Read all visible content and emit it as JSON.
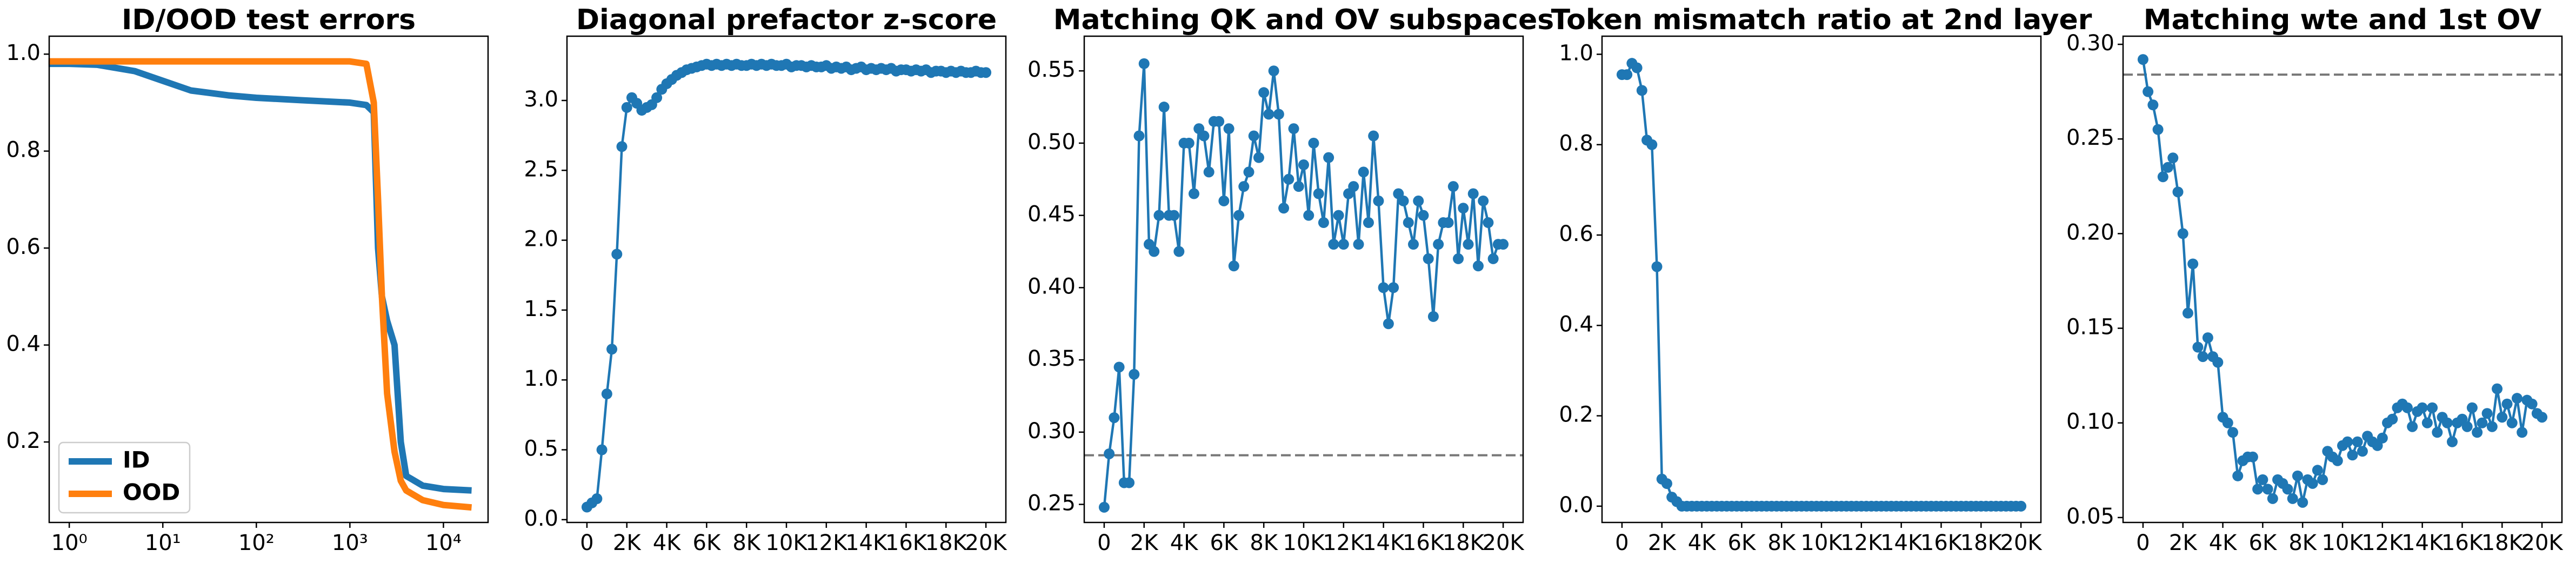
{
  "chart_data": [
    {
      "type": "line",
      "title": "ID/OOD test errors",
      "xscale": "log",
      "x": [
        0.6,
        1,
        2,
        5,
        10,
        20,
        50,
        100,
        300,
        1000,
        1500,
        1800,
        2000,
        2200,
        2500,
        3000,
        3500,
        4000,
        6000,
        10000,
        20000
      ],
      "series": [
        {
          "name": "ID",
          "color": "#1f77b4",
          "values": [
            0.98,
            0.98,
            0.978,
            0.965,
            0.945,
            0.925,
            0.915,
            0.91,
            0.905,
            0.9,
            0.895,
            0.88,
            0.6,
            0.5,
            0.45,
            0.4,
            0.2,
            0.13,
            0.11,
            0.103,
            0.1
          ]
        },
        {
          "name": "OOD",
          "color": "#ff7f0e",
          "values": [
            0.985,
            0.985,
            0.985,
            0.985,
            0.985,
            0.985,
            0.985,
            0.985,
            0.985,
            0.985,
            0.98,
            0.9,
            0.7,
            0.5,
            0.3,
            0.18,
            0.12,
            0.1,
            0.08,
            0.07,
            0.065
          ]
        }
      ],
      "xlim": [
        0.61,
        30000
      ],
      "xticks": [
        {
          "value": 1,
          "label": "10⁰"
        },
        {
          "value": 10,
          "label": "10¹"
        },
        {
          "value": 100,
          "label": "10²"
        },
        {
          "value": 1000,
          "label": "10³"
        },
        {
          "value": 10000,
          "label": "10⁴"
        }
      ],
      "ylim": [
        0.034,
        1.037
      ],
      "yticks": [
        0.2,
        0.4,
        0.6,
        0.8,
        {
          "value": 1,
          "label": "1.0"
        }
      ],
      "legend": "lower left"
    },
    {
      "type": "line",
      "title": "Diagonal prefactor z-score",
      "markers": true,
      "color": "#1f77b4",
      "x": [
        0,
        250,
        500,
        750,
        1000,
        1250,
        1500,
        1750,
        2000,
        2250,
        2500,
        2750,
        3000,
        3250,
        3500,
        3750,
        4000,
        4250,
        4500,
        4750,
        5000,
        5250,
        5500,
        5750,
        6000,
        6250,
        6500,
        6750,
        7000,
        7250,
        7500,
        7750,
        8000,
        8250,
        8500,
        8750,
        9000,
        9250,
        9500,
        9750,
        10000,
        10250,
        10500,
        10750,
        11000,
        11250,
        11500,
        11750,
        12000,
        12250,
        12500,
        12750,
        13000,
        13250,
        13500,
        13750,
        14000,
        14250,
        14500,
        14750,
        15000,
        15250,
        15500,
        15750,
        16000,
        16250,
        16500,
        16750,
        17000,
        17250,
        17500,
        17750,
        18000,
        18250,
        18500,
        18750,
        19000,
        19250,
        19500,
        19750,
        20000
      ],
      "values": [
        0.09,
        0.12,
        0.15,
        0.5,
        0.9,
        1.22,
        1.9,
        2.67,
        2.95,
        3.02,
        2.98,
        2.93,
        2.95,
        2.97,
        3.02,
        3.08,
        3.12,
        3.15,
        3.18,
        3.2,
        3.22,
        3.23,
        3.24,
        3.25,
        3.26,
        3.25,
        3.26,
        3.25,
        3.26,
        3.25,
        3.26,
        3.25,
        3.25,
        3.26,
        3.25,
        3.26,
        3.25,
        3.26,
        3.25,
        3.25,
        3.26,
        3.24,
        3.25,
        3.25,
        3.24,
        3.25,
        3.24,
        3.24,
        3.25,
        3.23,
        3.24,
        3.23,
        3.24,
        3.22,
        3.23,
        3.24,
        3.22,
        3.23,
        3.22,
        3.23,
        3.22,
        3.23,
        3.21,
        3.22,
        3.22,
        3.21,
        3.22,
        3.21,
        3.22,
        3.2,
        3.21,
        3.21,
        3.2,
        3.21,
        3.2,
        3.21,
        3.2,
        3.2,
        3.21,
        3.2,
        3.2
      ],
      "xlim": [
        -1000,
        21000
      ],
      "xticks": [
        0,
        {
          "value": 2000,
          "label": "2K"
        },
        {
          "value": 4000,
          "label": "4K"
        },
        {
          "value": 6000,
          "label": "6K"
        },
        {
          "value": 8000,
          "label": "8K"
        },
        {
          "value": 10000,
          "label": "10K"
        },
        {
          "value": 12000,
          "label": "12K"
        },
        {
          "value": 14000,
          "label": "14K"
        },
        {
          "value": 16000,
          "label": "16K"
        },
        {
          "value": 18000,
          "label": "18K"
        },
        {
          "value": 20000,
          "label": "20K"
        }
      ],
      "ylim": [
        -0.02,
        3.46
      ],
      "yticks": [
        {
          "value": 0,
          "label": "0.0"
        },
        0.5,
        {
          "value": 1,
          "label": "1.0"
        },
        1.5,
        {
          "value": 2,
          "label": "2.0"
        },
        2.5,
        {
          "value": 3,
          "label": "3.0"
        }
      ]
    },
    {
      "type": "line",
      "title": "Matching QK and OV subspaces",
      "markers": true,
      "color": "#1f77b4",
      "hline": 0.284,
      "x": [
        0,
        250,
        500,
        750,
        1000,
        1250,
        1500,
        1750,
        2000,
        2250,
        2500,
        2750,
        3000,
        3250,
        3500,
        3750,
        4000,
        4250,
        4500,
        4750,
        5000,
        5250,
        5500,
        5750,
        6000,
        6250,
        6500,
        6750,
        7000,
        7250,
        7500,
        7750,
        8000,
        8250,
        8500,
        8750,
        9000,
        9250,
        9500,
        9750,
        10000,
        10250,
        10500,
        10750,
        11000,
        11250,
        11500,
        11750,
        12000,
        12250,
        12500,
        12750,
        13000,
        13250,
        13500,
        13750,
        14000,
        14250,
        14500,
        14750,
        15000,
        15250,
        15500,
        15750,
        16000,
        16250,
        16500,
        16750,
        17000,
        17250,
        17500,
        17750,
        18000,
        18250,
        18500,
        18750,
        19000,
        19250,
        19500,
        19750,
        20000
      ],
      "values": [
        0.248,
        0.285,
        0.31,
        0.345,
        0.265,
        0.265,
        0.34,
        0.505,
        0.555,
        0.43,
        0.425,
        0.45,
        0.525,
        0.45,
        0.45,
        0.425,
        0.5,
        0.5,
        0.465,
        0.51,
        0.505,
        0.48,
        0.515,
        0.515,
        0.46,
        0.51,
        0.415,
        0.45,
        0.47,
        0.48,
        0.505,
        0.49,
        0.535,
        0.52,
        0.55,
        0.52,
        0.455,
        0.475,
        0.51,
        0.47,
        0.485,
        0.45,
        0.5,
        0.465,
        0.445,
        0.49,
        0.43,
        0.45,
        0.43,
        0.465,
        0.47,
        0.43,
        0.48,
        0.445,
        0.505,
        0.46,
        0.4,
        0.375,
        0.4,
        0.465,
        0.46,
        0.445,
        0.43,
        0.46,
        0.45,
        0.42,
        0.38,
        0.43,
        0.445,
        0.445,
        0.47,
        0.42,
        0.455,
        0.43,
        0.465,
        0.415,
        0.46,
        0.445,
        0.42,
        0.43,
        0.43
      ],
      "xlim": [
        -1000,
        21000
      ],
      "xticks": [
        0,
        {
          "value": 2000,
          "label": "2K"
        },
        {
          "value": 4000,
          "label": "4K"
        },
        {
          "value": 6000,
          "label": "6K"
        },
        {
          "value": 8000,
          "label": "8K"
        },
        {
          "value": 10000,
          "label": "10K"
        },
        {
          "value": 12000,
          "label": "12K"
        },
        {
          "value": 14000,
          "label": "14K"
        },
        {
          "value": 16000,
          "label": "16K"
        },
        {
          "value": 18000,
          "label": "18K"
        },
        {
          "value": 20000,
          "label": "20K"
        }
      ],
      "ylim": [
        0.2375,
        0.574
      ],
      "yticks": [
        0.25,
        {
          "value": 0.3,
          "label": "0.30"
        },
        0.35,
        {
          "value": 0.4,
          "label": "0.40"
        },
        0.45,
        {
          "value": 0.5,
          "label": "0.50"
        },
        0.55
      ]
    },
    {
      "type": "line",
      "title": "Token mismatch ratio at 2nd layer",
      "markers": true,
      "color": "#1f77b4",
      "x": [
        0,
        250,
        500,
        750,
        1000,
        1250,
        1500,
        1750,
        2000,
        2250,
        2500,
        2750,
        3000,
        3250,
        3500,
        3750,
        4000,
        4250,
        4500,
        4750,
        5000,
        5250,
        5500,
        5750,
        6000,
        6250,
        6500,
        6750,
        7000,
        7250,
        7500,
        7750,
        8000,
        8250,
        8500,
        8750,
        9000,
        9250,
        9500,
        9750,
        10000,
        10250,
        10500,
        10750,
        11000,
        11250,
        11500,
        11750,
        12000,
        12250,
        12500,
        12750,
        13000,
        13250,
        13500,
        13750,
        14000,
        14250,
        14500,
        14750,
        15000,
        15250,
        15500,
        15750,
        16000,
        16250,
        16500,
        16750,
        17000,
        17250,
        17500,
        17750,
        18000,
        18250,
        18500,
        18750,
        19000,
        19250,
        19500,
        19750,
        20000
      ],
      "values": [
        0.955,
        0.955,
        0.98,
        0.97,
        0.92,
        0.81,
        0.8,
        0.53,
        0.06,
        0.05,
        0.02,
        0.01,
        0,
        0,
        0,
        0,
        0,
        0,
        0,
        0,
        0,
        0,
        0,
        0,
        0,
        0,
        0,
        0,
        0,
        0,
        0,
        0,
        0,
        0,
        0,
        0,
        0,
        0,
        0,
        0,
        0,
        0,
        0,
        0,
        0,
        0,
        0,
        0,
        0,
        0,
        0,
        0,
        0,
        0,
        0,
        0,
        0,
        0,
        0,
        0,
        0,
        0,
        0,
        0,
        0,
        0,
        0,
        0,
        0,
        0,
        0,
        0,
        0,
        0,
        0,
        0,
        0,
        0,
        0,
        0,
        0
      ],
      "xlim": [
        -1000,
        21000
      ],
      "xticks": [
        0,
        {
          "value": 2000,
          "label": "2K"
        },
        {
          "value": 4000,
          "label": "4K"
        },
        {
          "value": 6000,
          "label": "6K"
        },
        {
          "value": 8000,
          "label": "8K"
        },
        {
          "value": 10000,
          "label": "10K"
        },
        {
          "value": 12000,
          "label": "12K"
        },
        {
          "value": 14000,
          "label": "14K"
        },
        {
          "value": 16000,
          "label": "16K"
        },
        {
          "value": 18000,
          "label": "18K"
        },
        {
          "value": 20000,
          "label": "20K"
        }
      ],
      "ylim": [
        -0.036,
        1.04
      ],
      "yticks": [
        {
          "value": 0,
          "label": "0.0"
        },
        0.2,
        0.4,
        0.6,
        0.8,
        {
          "value": 1,
          "label": "1.0"
        }
      ]
    },
    {
      "type": "line",
      "title": "Matching wte and 1st OV",
      "markers": true,
      "color": "#1f77b4",
      "hline": 0.284,
      "x": [
        0,
        250,
        500,
        750,
        1000,
        1250,
        1500,
        1750,
        2000,
        2250,
        2500,
        2750,
        3000,
        3250,
        3500,
        3750,
        4000,
        4250,
        4500,
        4750,
        5000,
        5250,
        5500,
        5750,
        6000,
        6250,
        6500,
        6750,
        7000,
        7250,
        7500,
        7750,
        8000,
        8250,
        8500,
        8750,
        9000,
        9250,
        9500,
        9750,
        10000,
        10250,
        10500,
        10750,
        11000,
        11250,
        11500,
        11750,
        12000,
        12250,
        12500,
        12750,
        13000,
        13250,
        13500,
        13750,
        14000,
        14250,
        14500,
        14750,
        15000,
        15250,
        15500,
        15750,
        16000,
        16250,
        16500,
        16750,
        17000,
        17250,
        17500,
        17750,
        18000,
        18250,
        18500,
        18750,
        19000,
        19250,
        19500,
        19750,
        20000
      ],
      "values": [
        0.292,
        0.275,
        0.268,
        0.255,
        0.23,
        0.235,
        0.24,
        0.222,
        0.2,
        0.158,
        0.184,
        0.14,
        0.135,
        0.145,
        0.135,
        0.132,
        0.103,
        0.1,
        0.095,
        0.072,
        0.08,
        0.082,
        0.082,
        0.065,
        0.07,
        0.065,
        0.06,
        0.07,
        0.068,
        0.065,
        0.06,
        0.072,
        0.058,
        0.07,
        0.068,
        0.075,
        0.07,
        0.085,
        0.082,
        0.08,
        0.088,
        0.09,
        0.083,
        0.09,
        0.085,
        0.093,
        0.09,
        0.088,
        0.092,
        0.1,
        0.102,
        0.108,
        0.11,
        0.108,
        0.098,
        0.106,
        0.108,
        0.1,
        0.108,
        0.095,
        0.103,
        0.1,
        0.09,
        0.1,
        0.102,
        0.098,
        0.108,
        0.095,
        0.1,
        0.105,
        0.098,
        0.118,
        0.103,
        0.11,
        0.1,
        0.113,
        0.095,
        0.112,
        0.11,
        0.105,
        0.103
      ],
      "xlim": [
        -1000,
        21000
      ],
      "xticks": [
        0,
        {
          "value": 2000,
          "label": "2K"
        },
        {
          "value": 4000,
          "label": "4K"
        },
        {
          "value": 6000,
          "label": "6K"
        },
        {
          "value": 8000,
          "label": "8K"
        },
        {
          "value": 10000,
          "label": "10K"
        },
        {
          "value": 12000,
          "label": "12K"
        },
        {
          "value": 14000,
          "label": "14K"
        },
        {
          "value": 16000,
          "label": "16K"
        },
        {
          "value": 18000,
          "label": "18K"
        },
        {
          "value": 20000,
          "label": "20K"
        }
      ],
      "ylim": [
        0.0474,
        0.3043
      ],
      "yticks": [
        0.05,
        {
          "value": 0.1,
          "label": "0.10"
        },
        0.15,
        {
          "value": 0.2,
          "label": "0.20"
        },
        0.25,
        {
          "value": 0.3,
          "label": "0.30"
        }
      ]
    }
  ]
}
